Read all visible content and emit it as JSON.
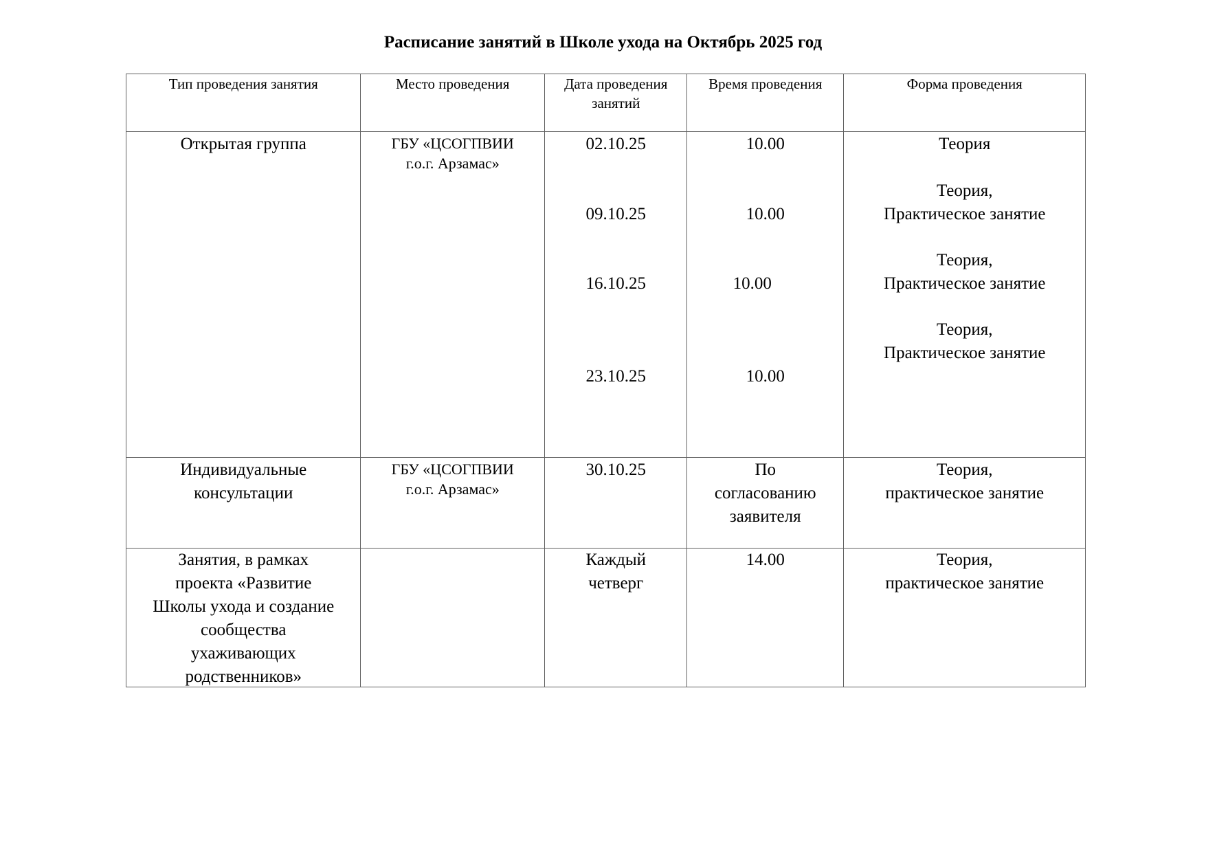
{
  "title": "Расписание занятий в Школе ухода на Октябрь 2025 год",
  "headers": [
    "Тип проведения занятия",
    "Место проведения",
    "Дата проведения занятий",
    "Время проведения",
    "Форма проведения"
  ],
  "rows": [
    {
      "type": "Открытая группа",
      "place": [
        "ГБУ «ЦСОГПВИИ",
        "г.о.г. Арзамас»"
      ],
      "dates": [
        "02.10.25",
        "09.10.25",
        "16.10.25",
        "23.10.25"
      ],
      "times": [
        "10.00",
        "10.00",
        "10.00",
        "10.00"
      ],
      "forms": [
        [
          "Теория"
        ],
        [
          "Теория,",
          "Практическое занятие"
        ],
        [
          "Теория,",
          "Практическое занятие"
        ],
        [
          "Теория,",
          "Практическое занятие"
        ]
      ]
    },
    {
      "type": [
        "Индивидуальные",
        "консультации"
      ],
      "place": [
        "ГБУ «ЦСОГПВИИ",
        "г.о.г. Арзамас»"
      ],
      "date": "30.10.25",
      "time": [
        "По",
        "согласованию",
        "заявителя"
      ],
      "form": [
        "Теория,",
        "практическое занятие"
      ]
    },
    {
      "type": [
        "Занятия, в рамках",
        "проекта «Развитие",
        "Школы ухода и создание",
        "сообщества",
        "ухаживающих",
        "родственников»"
      ],
      "place": "",
      "date": [
        "Каждый",
        "четверг"
      ],
      "time": "14.00",
      "form": [
        "Теория,",
        "практическое занятие"
      ]
    }
  ]
}
